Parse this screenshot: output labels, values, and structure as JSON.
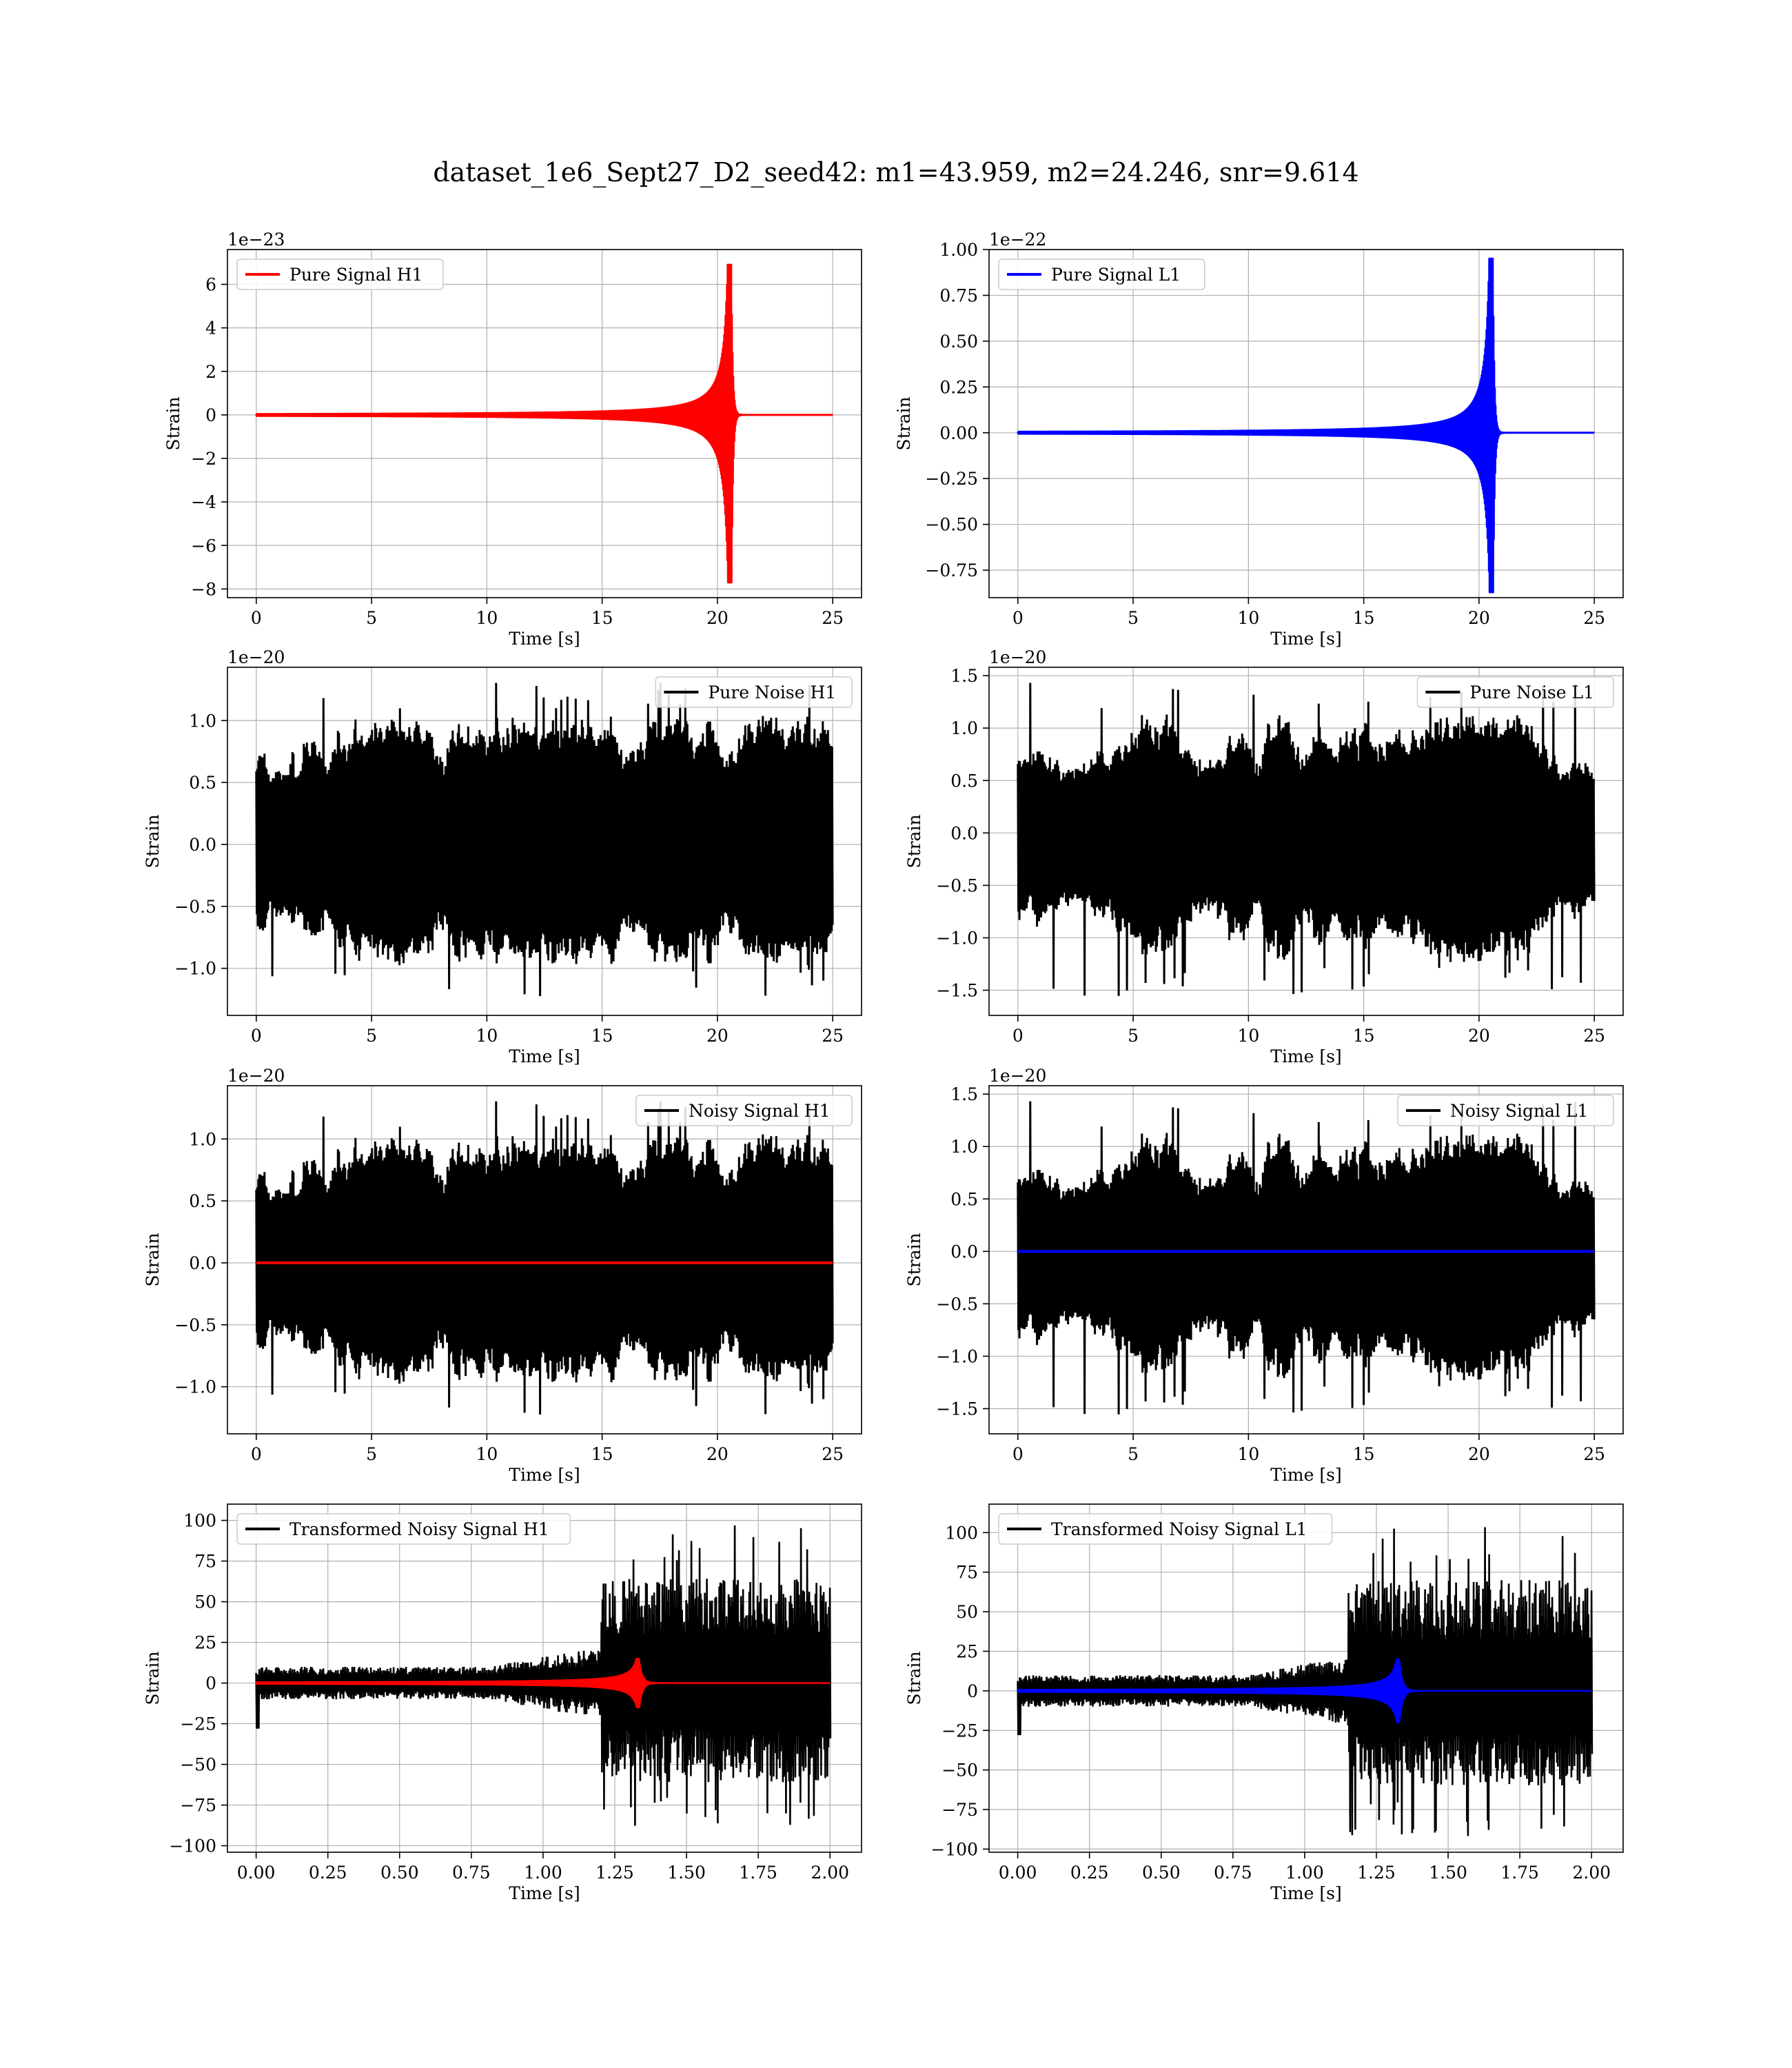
{
  "figure": {
    "suptitle": "dataset_1e6_Sept27_D2_seed42: m1=43.959, m2=24.246, snr=9.614"
  },
  "colors": {
    "h1": "#ff0000",
    "l1": "#0000ff",
    "noise": "#000000",
    "grid": "#b0b0b0"
  },
  "chart_data": [
    {
      "type": "line",
      "id": "pure-signal-h1",
      "xlabel": "Time [s]",
      "ylabel": "Strain",
      "offset_text": "1e−23",
      "xlim": [
        -1.25,
        26.25
      ],
      "ylim": [
        -8.4,
        7.6
      ],
      "xticks": [
        0,
        5,
        10,
        15,
        20,
        25
      ],
      "xtick_labels": [
        "0",
        "5",
        "10",
        "15",
        "20",
        "25"
      ],
      "yticks": [
        -8,
        -6,
        -4,
        -2,
        0,
        2,
        4,
        6
      ],
      "ytick_labels": [
        "−8",
        "−6",
        "−4",
        "−2",
        "0",
        "2",
        "4",
        "6"
      ],
      "grid": true,
      "legend_loc": "upper left",
      "series": [
        {
          "name": "Pure Signal H1",
          "color": "#ff0000",
          "kind": "chirp",
          "x_start": 0,
          "x_end": 25,
          "merger": 20.6,
          "peak_pos": 6.9,
          "peak_neg": -7.7,
          "legend": true
        }
      ]
    },
    {
      "type": "line",
      "id": "pure-signal-l1",
      "xlabel": "Time [s]",
      "ylabel": "Strain",
      "offset_text": "1e−22",
      "xlim": [
        -1.25,
        26.25
      ],
      "ylim": [
        -0.9,
        1.0
      ],
      "xticks": [
        0,
        5,
        10,
        15,
        20,
        25
      ],
      "xtick_labels": [
        "0",
        "5",
        "10",
        "15",
        "20",
        "25"
      ],
      "yticks": [
        -0.75,
        -0.5,
        -0.25,
        0,
        0.25,
        0.5,
        0.75,
        1.0
      ],
      "ytick_labels": [
        "−0.75",
        "−0.50",
        "−0.25",
        "0.00",
        "0.25",
        "0.50",
        "0.75",
        "1.00"
      ],
      "grid": true,
      "legend_loc": "upper left",
      "series": [
        {
          "name": "Pure Signal L1",
          "color": "#0000ff",
          "kind": "chirp",
          "x_start": 0,
          "x_end": 25,
          "merger": 20.6,
          "peak_pos": 0.95,
          "peak_neg": -0.87,
          "legend": true
        }
      ]
    },
    {
      "type": "line",
      "id": "pure-noise-h1",
      "xlabel": "Time [s]",
      "ylabel": "Strain",
      "offset_text": "1e−20",
      "xlim": [
        -1.25,
        26.25
      ],
      "ylim": [
        -1.38,
        1.43
      ],
      "xticks": [
        0,
        5,
        10,
        15,
        20,
        25
      ],
      "xtick_labels": [
        "0",
        "5",
        "10",
        "15",
        "20",
        "25"
      ],
      "yticks": [
        -1.0,
        -0.5,
        0,
        0.5,
        1.0
      ],
      "ytick_labels": [
        "−1.0",
        "−0.5",
        "0.0",
        "0.5",
        "1.0"
      ],
      "grid": true,
      "legend_loc": "upper right",
      "series": [
        {
          "name": "Pure Noise H1",
          "color": "#000000",
          "kind": "noise",
          "x_start": 0,
          "x_end": 25,
          "peak": 1.33,
          "trough": -1.25,
          "seed": 11,
          "legend": true
        }
      ]
    },
    {
      "type": "line",
      "id": "pure-noise-l1",
      "xlabel": "Time [s]",
      "ylabel": "Strain",
      "offset_text": "1e−20",
      "xlim": [
        -1.25,
        26.25
      ],
      "ylim": [
        -1.74,
        1.58
      ],
      "xticks": [
        0,
        5,
        10,
        15,
        20,
        25
      ],
      "xtick_labels": [
        "0",
        "5",
        "10",
        "15",
        "20",
        "25"
      ],
      "yticks": [
        -1.5,
        -1.0,
        -0.5,
        0,
        0.5,
        1.0,
        1.5
      ],
      "ytick_labels": [
        "−1.5",
        "−1.0",
        "−0.5",
        "0.0",
        "0.5",
        "1.0",
        "1.5"
      ],
      "grid": true,
      "legend_loc": "upper right",
      "series": [
        {
          "name": "Pure Noise L1",
          "color": "#000000",
          "kind": "noise",
          "x_start": 0,
          "x_end": 25,
          "peak": 1.45,
          "trough": -1.58,
          "seed": 23,
          "legend": true
        }
      ]
    },
    {
      "type": "line",
      "id": "noisy-signal-h1",
      "xlabel": "Time [s]",
      "ylabel": "Strain",
      "offset_text": "1e−20",
      "xlim": [
        -1.25,
        26.25
      ],
      "ylim": [
        -1.38,
        1.43
      ],
      "xticks": [
        0,
        5,
        10,
        15,
        20,
        25
      ],
      "xtick_labels": [
        "0",
        "5",
        "10",
        "15",
        "20",
        "25"
      ],
      "yticks": [
        -1.0,
        -0.5,
        0,
        0.5,
        1.0
      ],
      "ytick_labels": [
        "−1.0",
        "−0.5",
        "0.0",
        "0.5",
        "1.0"
      ],
      "grid": true,
      "legend_loc": "upper right",
      "series": [
        {
          "name": "Noisy Signal H1",
          "color": "#000000",
          "kind": "noise",
          "x_start": 0,
          "x_end": 25,
          "peak": 1.33,
          "trough": -1.25,
          "seed": 11,
          "legend": true
        },
        {
          "name": "",
          "color": "#ff0000",
          "kind": "flat",
          "x_start": 0,
          "x_end": 25,
          "value": 0,
          "legend": false
        }
      ]
    },
    {
      "type": "line",
      "id": "noisy-signal-l1",
      "xlabel": "Time [s]",
      "ylabel": "Strain",
      "offset_text": "1e−20",
      "xlim": [
        -1.25,
        26.25
      ],
      "ylim": [
        -1.74,
        1.58
      ],
      "xticks": [
        0,
        5,
        10,
        15,
        20,
        25
      ],
      "xtick_labels": [
        "0",
        "5",
        "10",
        "15",
        "20",
        "25"
      ],
      "yticks": [
        -1.5,
        -1.0,
        -0.5,
        0,
        0.5,
        1.0,
        1.5
      ],
      "ytick_labels": [
        "−1.5",
        "−1.0",
        "−0.5",
        "0.0",
        "0.5",
        "1.0",
        "1.5"
      ],
      "grid": true,
      "legend_loc": "upper right",
      "series": [
        {
          "name": "Noisy Signal L1",
          "color": "#000000",
          "kind": "noise",
          "x_start": 0,
          "x_end": 25,
          "peak": 1.45,
          "trough": -1.58,
          "seed": 23,
          "legend": true
        },
        {
          "name": "",
          "color": "#0000ff",
          "kind": "flat",
          "x_start": 0,
          "x_end": 25,
          "value": 0,
          "legend": false
        }
      ]
    },
    {
      "type": "line",
      "id": "transformed-noisy-signal-h1",
      "xlabel": "Time [s]",
      "ylabel": "Strain",
      "offset_text": "",
      "xlim": [
        -0.1,
        2.11
      ],
      "ylim": [
        -104,
        110
      ],
      "xticks": [
        0,
        0.25,
        0.5,
        0.75,
        1.0,
        1.25,
        1.5,
        1.75,
        2.0
      ],
      "xtick_labels": [
        "0.00",
        "0.25",
        "0.50",
        "0.75",
        "1.00",
        "1.25",
        "1.50",
        "1.75",
        "2.00"
      ],
      "yticks": [
        -100,
        -75,
        -50,
        -25,
        0,
        25,
        50,
        75,
        100
      ],
      "ytick_labels": [
        "−100",
        "−75",
        "−50",
        "−25",
        "0",
        "25",
        "50",
        "75",
        "100"
      ],
      "grid": true,
      "legend_loc": "upper left",
      "series": [
        {
          "name": "Transformed Noisy Signal H1",
          "color": "#000000",
          "kind": "burst",
          "x_start": 0,
          "x_end": 2.0,
          "onset": 1.2,
          "low_amp": 10,
          "high_peak": 99,
          "high_trough": -94,
          "seed": 31,
          "legend": true
        },
        {
          "name": "",
          "color": "#ff0000",
          "kind": "chirp_small",
          "x_start": 0,
          "x_end": 2.0,
          "merger": 1.335,
          "peak_pos": 15,
          "peak_neg": -15,
          "legend": false
        }
      ]
    },
    {
      "type": "line",
      "id": "transformed-noisy-signal-l1",
      "xlabel": "Time [s]",
      "ylabel": "Strain",
      "offset_text": "",
      "xlim": [
        -0.1,
        2.11
      ],
      "ylim": [
        -102,
        118
      ],
      "xticks": [
        0,
        0.25,
        0.5,
        0.75,
        1.0,
        1.25,
        1.5,
        1.75,
        2.0
      ],
      "xtick_labels": [
        "0.00",
        "0.25",
        "0.50",
        "0.75",
        "1.00",
        "1.25",
        "1.50",
        "1.75",
        "2.00"
      ],
      "yticks": [
        -100,
        -75,
        -50,
        -25,
        0,
        25,
        50,
        75,
        100
      ],
      "ytick_labels": [
        "−100",
        "−75",
        "−50",
        "−25",
        "0",
        "25",
        "50",
        "75",
        "100"
      ],
      "grid": true,
      "legend_loc": "upper left",
      "series": [
        {
          "name": "Transformed Noisy Signal L1",
          "color": "#000000",
          "kind": "burst",
          "x_start": 0,
          "x_end": 2.0,
          "onset": 1.15,
          "low_amp": 10,
          "high_peak": 108,
          "high_trough": -92,
          "seed": 47,
          "legend": true
        },
        {
          "name": "",
          "color": "#0000ff",
          "kind": "chirp_small",
          "x_start": 0,
          "x_end": 2.0,
          "merger": 1.33,
          "peak_pos": 20,
          "peak_neg": -20,
          "legend": false
        }
      ]
    }
  ]
}
